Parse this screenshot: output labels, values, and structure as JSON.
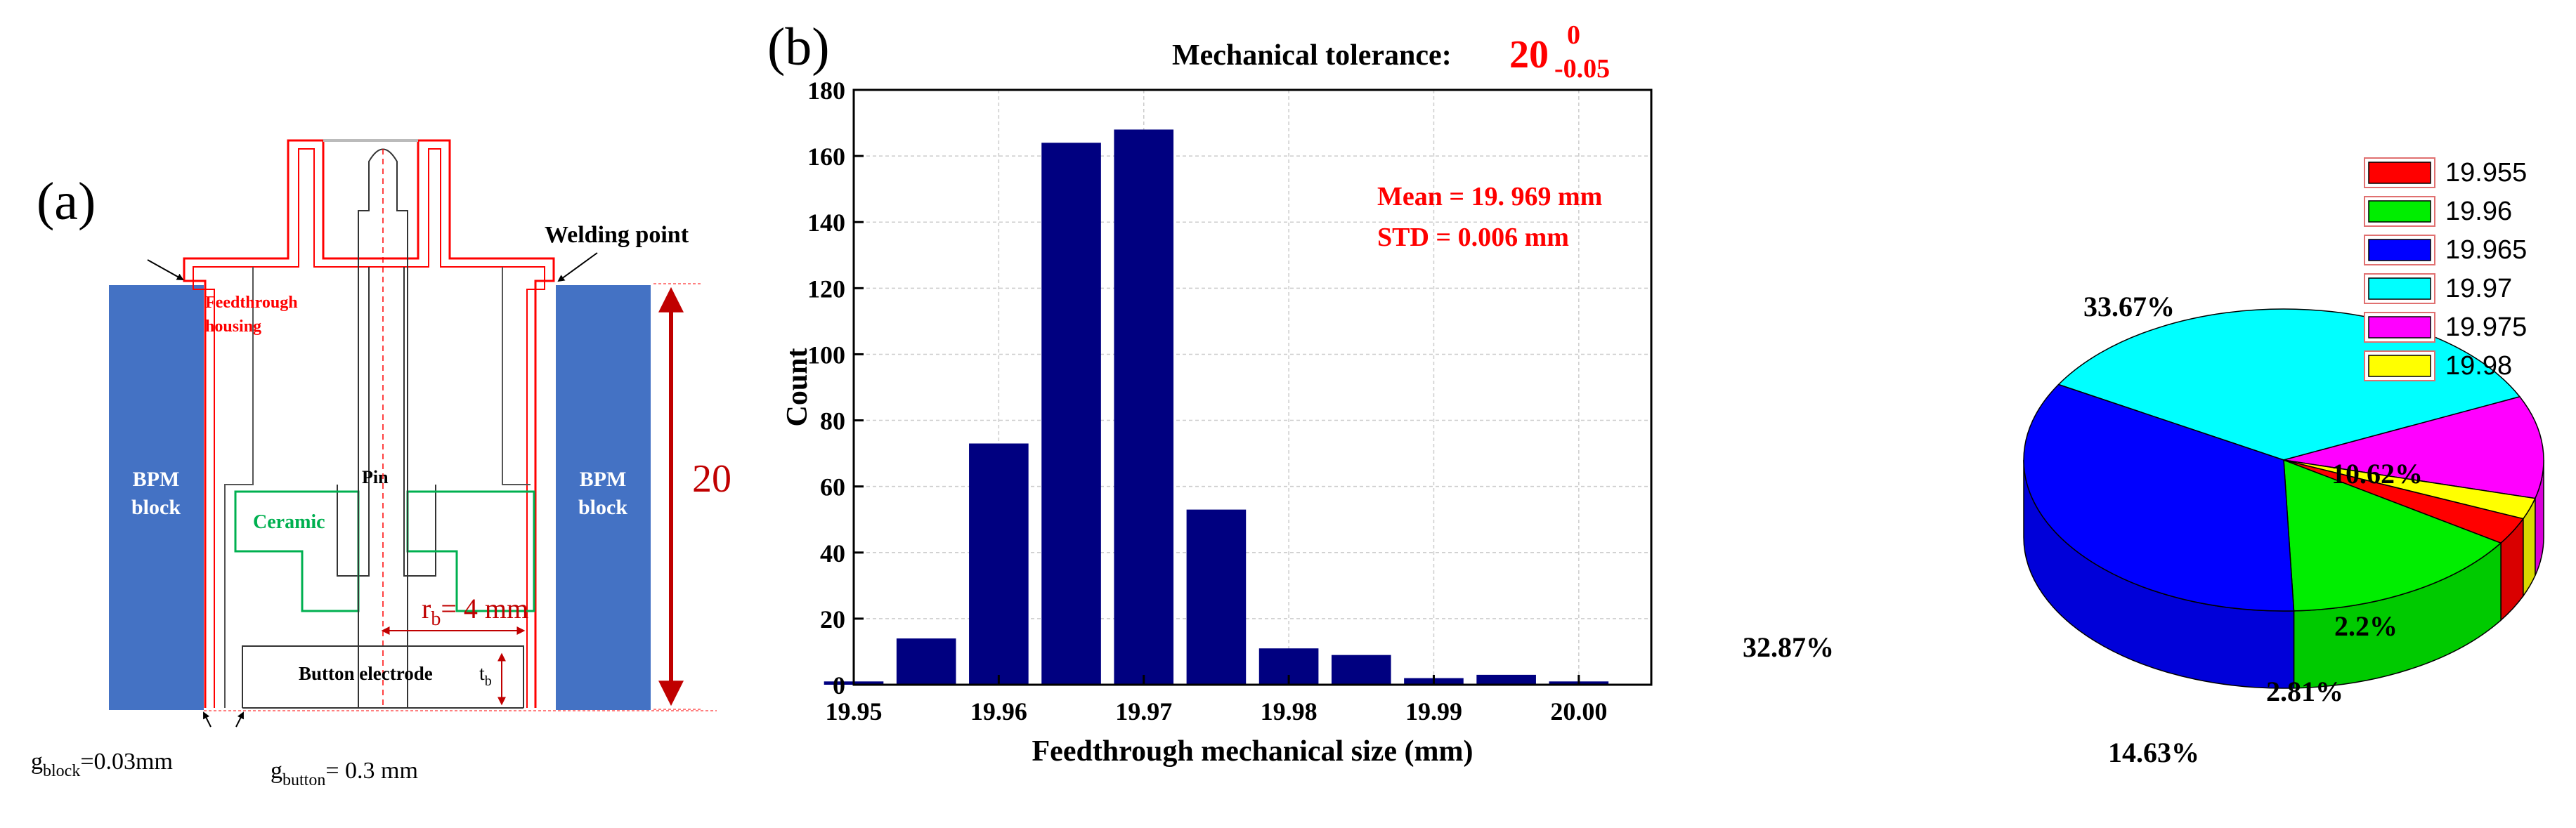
{
  "panel_a": {
    "label": "(a)",
    "welding_point": "Welding point",
    "feedthrough_line1": "Feedthrough",
    "feedthrough_line2": "housing",
    "bpm_left_line1": "BPM",
    "bpm_left_line2": "block",
    "bpm_right_line1": "BPM",
    "bpm_right_line2": "block",
    "pin": "Pin",
    "ceramic": "Ceramic",
    "button_electrode": "Button electrode",
    "tb_main": "t",
    "tb_sub": "b",
    "rb_main": "r",
    "rb_sub": "b",
    "rb_value": "= 4 mm",
    "height_value": "20",
    "gblock_main": "g",
    "gblock_sub": "block",
    "gblock_value": "=0.03mm",
    "gbutton_main": "g",
    "gbutton_sub": "button",
    "gbutton_value": "= 0.3 mm",
    "colors": {
      "block": "#4472c4",
      "housing": "#ff0000",
      "ceramic": "#00b050",
      "arrow": "#c00000"
    }
  },
  "panel_b": {
    "label": "(b)",
    "tolerance_label": "Mechanical tolerance:",
    "tolerance_nominal": "20",
    "tolerance_upper": "0",
    "tolerance_lower": "-0.05",
    "mean_text": "Mean = 19. 969 mm",
    "std_text": "STD = 0.006 mm",
    "bar_color": "#000080"
  },
  "chart_data": [
    {
      "type": "bar",
      "title": "Mechanical tolerance: 20 (+0 / -0.05)",
      "xlabel": "Feedthrough mechanical size (mm)",
      "ylabel": "Count",
      "categories": [
        "19.950",
        "19.955",
        "19.960",
        "19.965",
        "19.970",
        "19.975",
        "19.980",
        "19.985",
        "19.990",
        "19.995",
        "20.000"
      ],
      "values": [
        1,
        14,
        73,
        164,
        168,
        53,
        11,
        9,
        2,
        3,
        1
      ],
      "ylim": [
        0,
        180
      ],
      "xlim": [
        19.95,
        20.005
      ],
      "xticks": [
        "19.95",
        "19.96",
        "19.97",
        "19.98",
        "19.99",
        "20.00"
      ],
      "yticks": [
        "0",
        "20",
        "40",
        "60",
        "80",
        "100",
        "120",
        "140",
        "160",
        "180"
      ],
      "grid": true
    },
    {
      "type": "pie",
      "labels": [
        "19.955",
        "19.96",
        "19.965",
        "19.97",
        "19.975",
        "19.98"
      ],
      "values": [
        2.81,
        14.63,
        32.87,
        33.67,
        10.62,
        2.2
      ],
      "display_labels": [
        "2.81%",
        "14.63%",
        "32.87%",
        "33.67%",
        "10.62%",
        "2.2%"
      ],
      "colors": [
        "#ff0000",
        "#00ee00",
        "#0000ff",
        "#00ffff",
        "#ff00ff",
        "#ffff00"
      ],
      "legend_position": "top-right"
    }
  ]
}
